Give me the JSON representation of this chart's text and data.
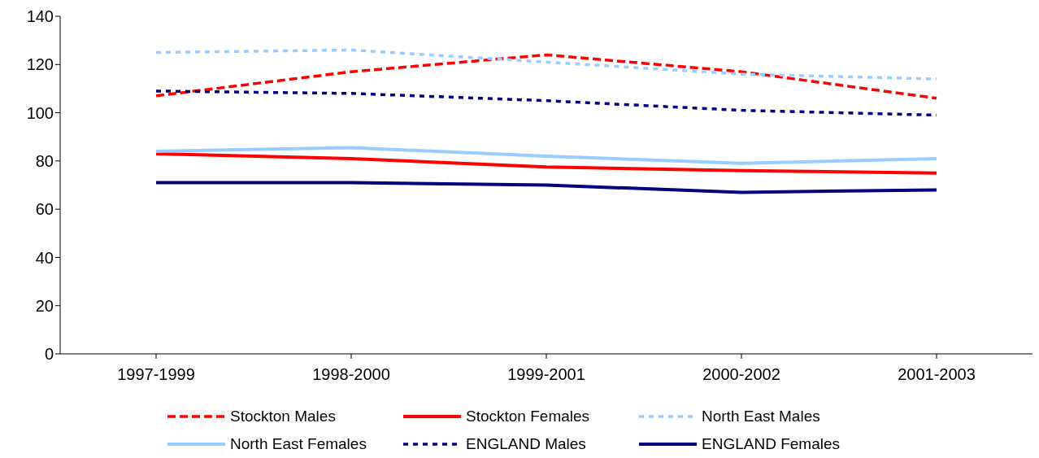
{
  "chart_data": {
    "type": "line",
    "categories": [
      "1997-1999",
      "1998-2000",
      "1999-2001",
      "2000-2002",
      "2001-2003"
    ],
    "series": [
      {
        "name": "Stockton Males",
        "color": "#ff0000",
        "line_style": "dashed",
        "values": [
          107,
          117,
          124,
          117,
          106
        ]
      },
      {
        "name": "Stockton Females",
        "color": "#ff0000",
        "line_style": "solid",
        "values": [
          83,
          81,
          77.5,
          76,
          75
        ]
      },
      {
        "name": "North East Males",
        "color": "#99ccff",
        "line_style": "dotted",
        "values": [
          125,
          126,
          121,
          116,
          114
        ]
      },
      {
        "name": "North East Females",
        "color": "#99ccff",
        "line_style": "solid",
        "values": [
          84,
          85.5,
          82,
          79,
          81
        ]
      },
      {
        "name": "ENGLAND Males",
        "color": "#000080",
        "line_style": "dotted",
        "values": [
          109,
          108,
          105,
          101,
          99
        ]
      },
      {
        "name": "ENGLAND Females",
        "color": "#000080",
        "line_style": "solid",
        "values": [
          71,
          71,
          70,
          67,
          68
        ]
      }
    ],
    "ylim": [
      0,
      140
    ],
    "yticks": [
      0,
      20,
      40,
      60,
      80,
      100,
      120,
      140
    ],
    "grid": false,
    "legend": "bottom",
    "marker": "none"
  }
}
